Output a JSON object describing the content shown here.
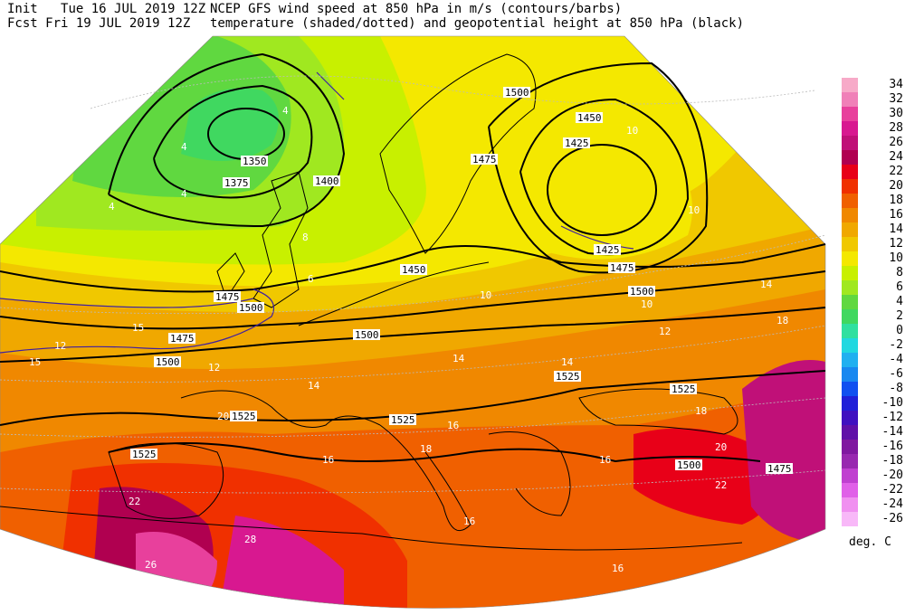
{
  "header": {
    "init_label": "Init",
    "init_value": "Tue 16 JUL 2019 12Z",
    "fcst_label": "Fcst",
    "fcst_value": "Fri 19 JUL 2019 12Z",
    "title_line1": "NCEP GFS wind speed at 850 hPa in m/s (contours/barbs)",
    "title_line2": "temperature (shaded/dotted) and geopotential height at 850 hPa (black)"
  },
  "legend": {
    "units": "deg. C",
    "levels": [
      "34",
      "32",
      "30",
      "28",
      "26",
      "24",
      "22",
      "20",
      "18",
      "16",
      "14",
      "12",
      "10",
      "8",
      "6",
      "4",
      "2",
      "0",
      "-2",
      "-4",
      "-6",
      "-8",
      "-10",
      "-12",
      "-14",
      "-16",
      "-18",
      "-20",
      "-22",
      "-24",
      "-26"
    ],
    "colors": [
      "#f7aac8",
      "#f080b8",
      "#e8409c",
      "#d81890",
      "#c01078",
      "#b00050",
      "#e80018",
      "#f03000",
      "#f06000",
      "#f08800",
      "#f0a800",
      "#f0c800",
      "#f4e800",
      "#c8f000",
      "#a0e820",
      "#60d840",
      "#40d860",
      "#30e0a0",
      "#20d8e0",
      "#20b0f0",
      "#1888f0",
      "#1050f0",
      "#2020d8",
      "#4010c0",
      "#6010a8",
      "#8018a0",
      "#9828b0",
      "#c040d0",
      "#e060e8",
      "#f090f0",
      "#f8b8f8"
    ]
  },
  "height_contours": [
    "1350",
    "1375",
    "1400",
    "1425",
    "1450",
    "1475",
    "1500",
    "1525"
  ],
  "map_labels": {
    "heights": [
      {
        "t": "1350"
      },
      {
        "t": "1375"
      },
      {
        "t": "1400"
      },
      {
        "t": "1425"
      },
      {
        "t": "1450"
      },
      {
        "t": "1475"
      },
      {
        "t": "1475"
      },
      {
        "t": "1500"
      },
      {
        "t": "1500"
      },
      {
        "t": "1500"
      },
      {
        "t": "1525"
      },
      {
        "t": "1525"
      },
      {
        "t": "1525"
      },
      {
        "t": "1525"
      },
      {
        "t": "1525"
      },
      {
        "t": "1500"
      },
      {
        "t": "1475"
      },
      {
        "t": "1475"
      },
      {
        "t": "1500"
      },
      {
        "t": "1425"
      },
      {
        "t": "1450"
      },
      {
        "t": "1475"
      },
      {
        "t": "1500"
      }
    ],
    "wind": [
      "4",
      "4",
      "4",
      "4",
      "6",
      "8",
      "10",
      "10",
      "10",
      "12",
      "12",
      "14",
      "15",
      "15",
      "10",
      "12",
      "14",
      "14",
      "16",
      "16",
      "18",
      "18",
      "20",
      "22",
      "18",
      "22",
      "26",
      "28",
      "20",
      "16",
      "16",
      "16",
      "14"
    ]
  }
}
